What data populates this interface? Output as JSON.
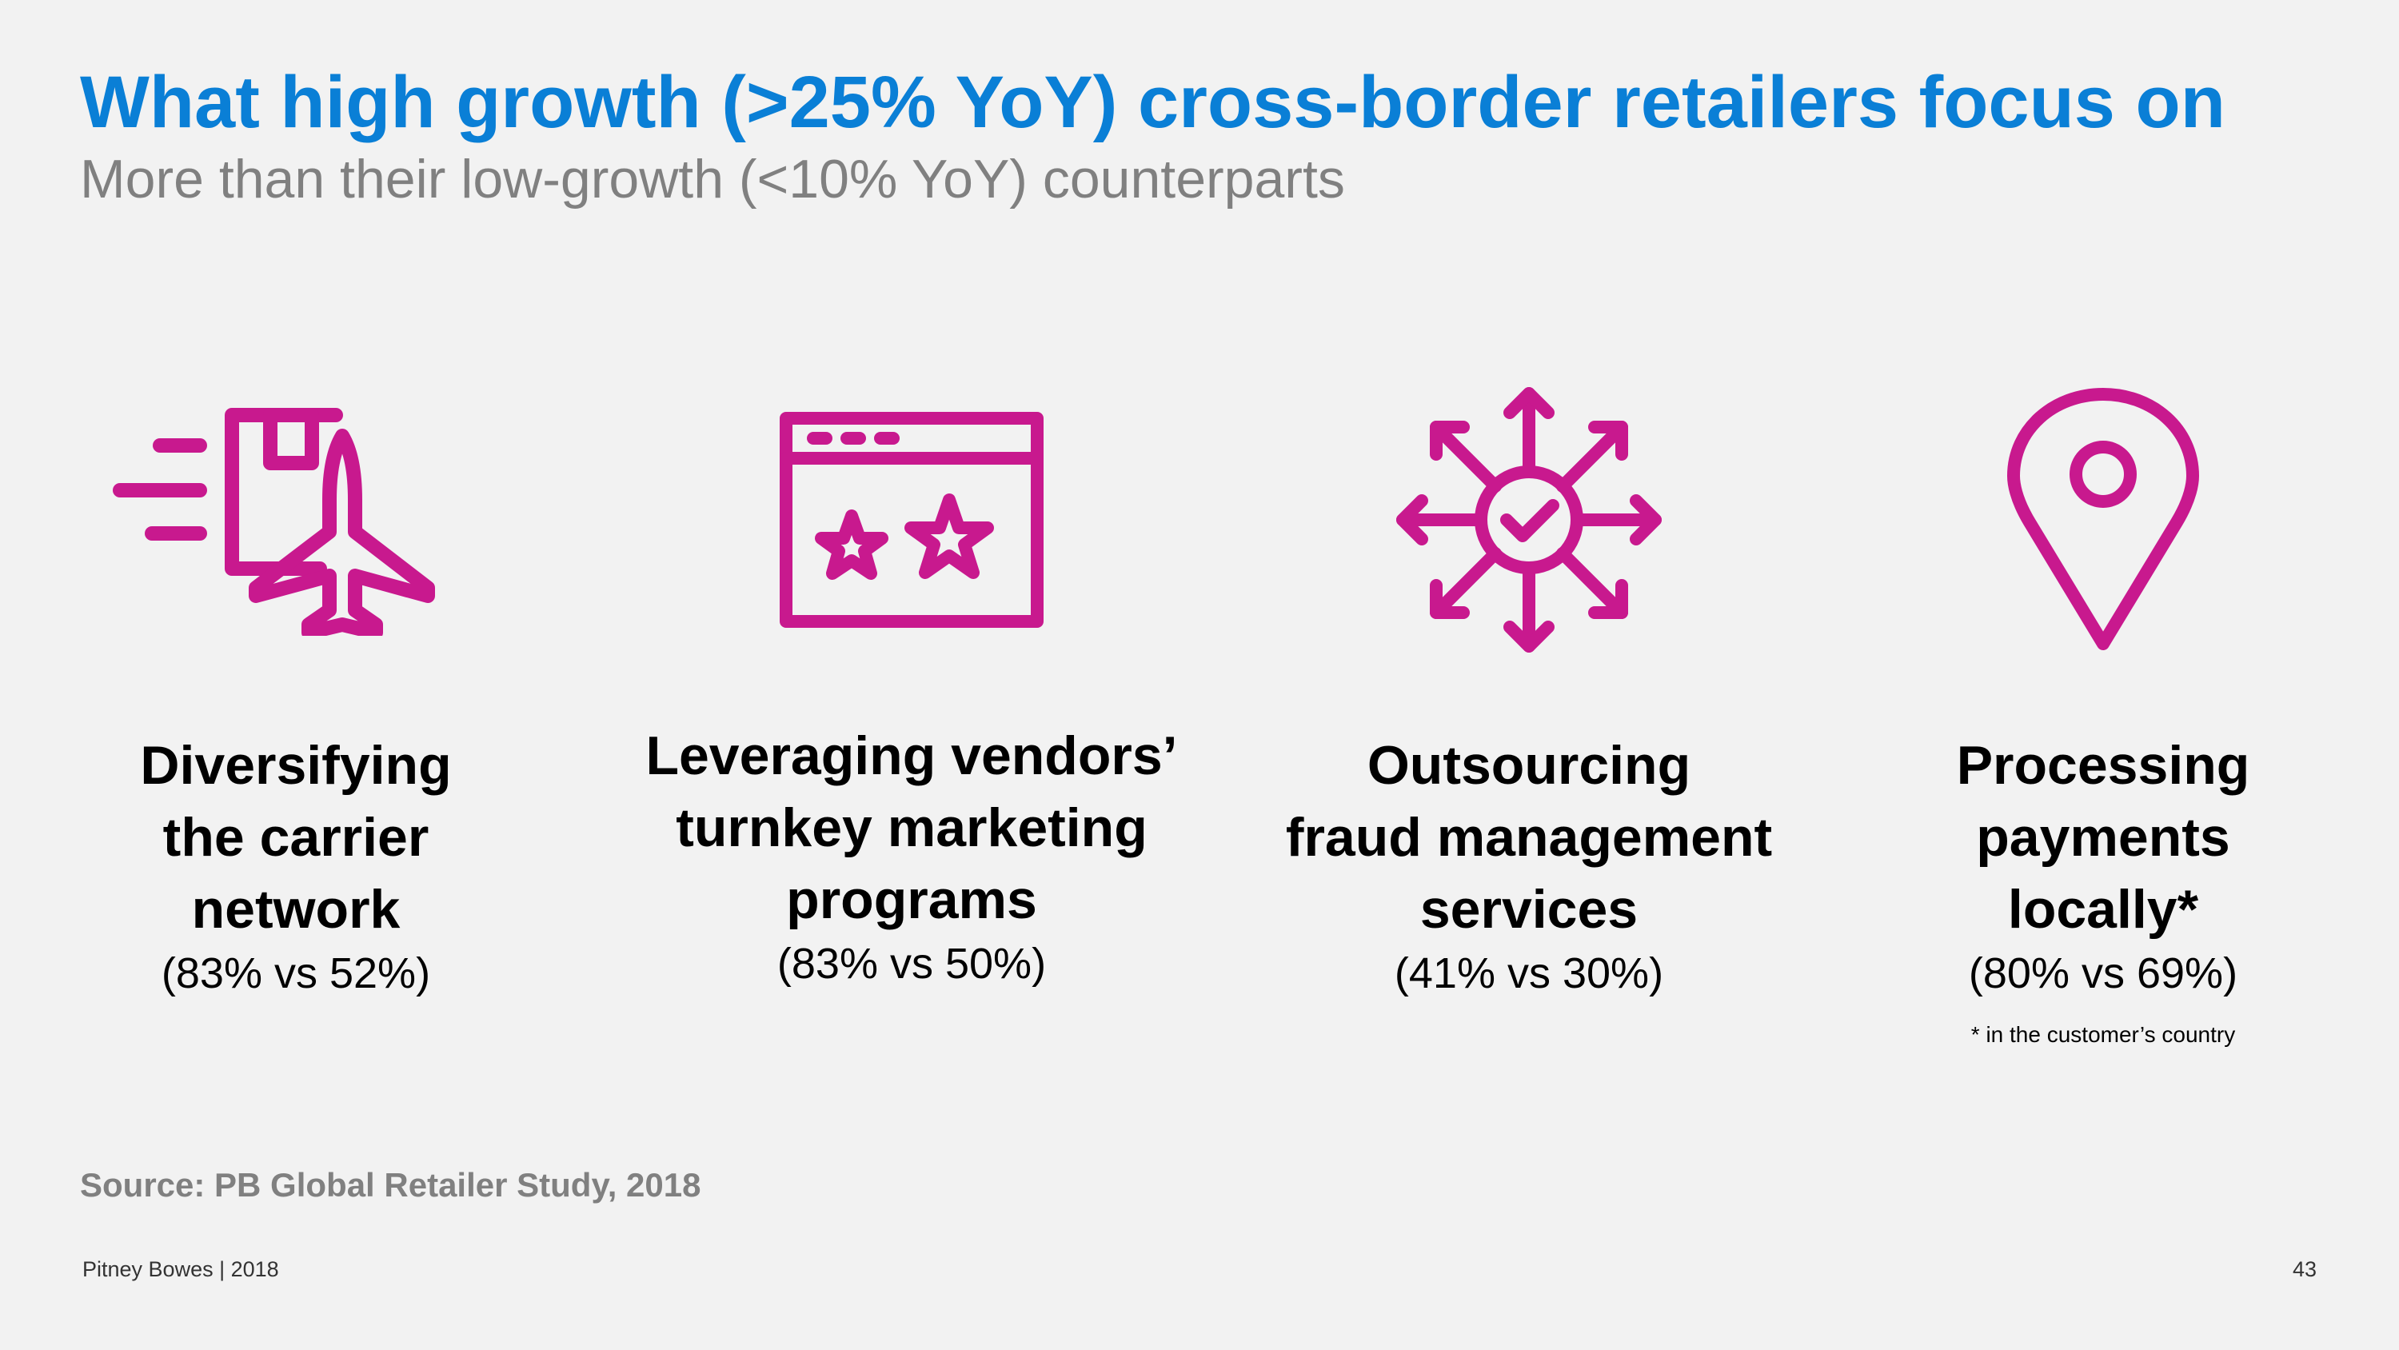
{
  "title": "What high growth (>25% YoY) cross-border retailers focus on",
  "subtitle": "More than their low-growth (<10% YoY) counterparts",
  "accent_color": "#c8198e",
  "title_color": "#0a7fd6",
  "items": [
    {
      "icon": "package-airplane-icon",
      "heading": "Diversifying\nthe carrier\nnetwork",
      "stat": "(83% vs 52%)"
    },
    {
      "icon": "browser-stars-icon",
      "heading": "Leveraging vendors’\nturnkey marketing\nprograms",
      "stat": "(83% vs 50%)"
    },
    {
      "icon": "checkmark-arrows-icon",
      "heading": "Outsourcing\nfraud management\nservices",
      "stat": "(41% vs 30%)"
    },
    {
      "icon": "location-pin-icon",
      "heading": "Processing\npayments\nlocally*",
      "stat": "(80% vs 69%)",
      "footnote": "* in the customer’s country"
    }
  ],
  "source": "Source: PB Global Retailer Study, 2018",
  "footer": {
    "left": "Pitney Bowes | 2018",
    "page_number": "43"
  }
}
